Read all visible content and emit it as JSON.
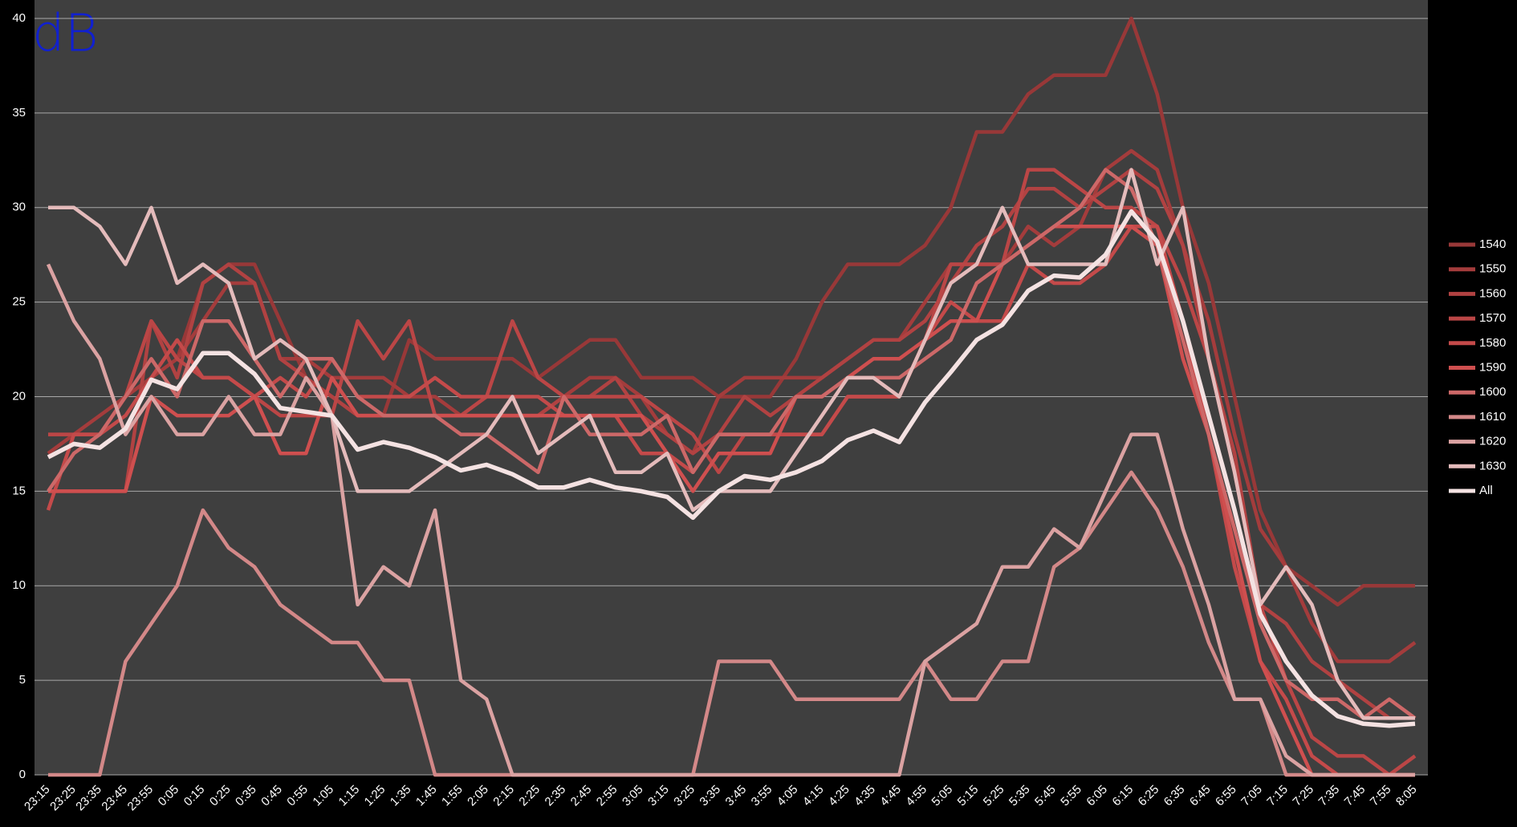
{
  "chart_data": {
    "type": "line",
    "annotation": "dB",
    "categories": [
      "23:15",
      "23:25",
      "23:35",
      "23:45",
      "23:55",
      "0:05",
      "0:15",
      "0:25",
      "0:35",
      "0:45",
      "0:55",
      "1:05",
      "1:15",
      "1:25",
      "1:35",
      "1:45",
      "1:55",
      "2:05",
      "2:15",
      "2:25",
      "2:35",
      "2:45",
      "2:55",
      "3:05",
      "3:15",
      "3:25",
      "3:35",
      "3:45",
      "3:55",
      "4:05",
      "4:15",
      "4:25",
      "4:35",
      "4:45",
      "4:55",
      "5:05",
      "5:15",
      "5:25",
      "5:35",
      "5:45",
      "5:55",
      "6:05",
      "6:15",
      "6:25",
      "6:35",
      "6:45",
      "6:55",
      "7:05",
      "7:15",
      "7:25",
      "7:35",
      "7:45",
      "7:55",
      "8:05"
    ],
    "ylim": [
      0,
      40
    ],
    "yticks": [
      0,
      5,
      10,
      15,
      20,
      25,
      30,
      35,
      40
    ],
    "grid": true,
    "legend": "right",
    "series": [
      {
        "name": "1540",
        "color": "#983838",
        "values": [
          18,
          18,
          18,
          20,
          24,
          22,
          26,
          27,
          27,
          24,
          21,
          20,
          19,
          19,
          23,
          22,
          22,
          22,
          22,
          21,
          22,
          23,
          23,
          21,
          21,
          21,
          20,
          20,
          20,
          22,
          25,
          27,
          27,
          27,
          28,
          30,
          34,
          34,
          36,
          37,
          37,
          37,
          40,
          36,
          30,
          26,
          20,
          14,
          11,
          10,
          9,
          10,
          10,
          10
        ]
      },
      {
        "name": "1550",
        "color": "#a43c3c",
        "values": [
          17,
          18,
          19,
          20,
          21,
          22,
          24,
          26,
          26,
          22,
          22,
          21,
          21,
          21,
          20,
          20,
          19,
          19,
          19,
          19,
          20,
          21,
          21,
          20,
          18,
          17,
          20,
          21,
          21,
          21,
          21,
          22,
          23,
          23,
          25,
          27,
          27,
          27,
          29,
          28,
          29,
          32,
          33,
          32,
          28,
          24,
          18,
          13,
          11,
          8,
          6,
          6,
          6,
          7
        ]
      },
      {
        "name": "1560",
        "color": "#b14242",
        "values": [
          15,
          15,
          15,
          15,
          24,
          21,
          26,
          27,
          26,
          22,
          21,
          20,
          19,
          19,
          19,
          19,
          19,
          19,
          19,
          19,
          20,
          20,
          21,
          19,
          18,
          17,
          18,
          20,
          19,
          20,
          21,
          22,
          23,
          23,
          24,
          26,
          28,
          29,
          31,
          31,
          30,
          31,
          32,
          31,
          28,
          22,
          17,
          9,
          8,
          6,
          5,
          4,
          3,
          3
        ]
      },
      {
        "name": "1570",
        "color": "#bb4646",
        "values": [
          18,
          18,
          18,
          20,
          24,
          22,
          21,
          21,
          20,
          19,
          19,
          19,
          24,
          22,
          24,
          19,
          19,
          20,
          24,
          21,
          20,
          20,
          20,
          20,
          19,
          18,
          16,
          18,
          18,
          18,
          18,
          20,
          20,
          20,
          23,
          27,
          27,
          27,
          32,
          32,
          31,
          30,
          30,
          29,
          26,
          22,
          16,
          9,
          5,
          2,
          1,
          1,
          0,
          1
        ]
      },
      {
        "name": "1580",
        "color": "#c44a4a",
        "values": [
          14,
          18,
          18,
          19,
          21,
          23,
          21,
          21,
          20,
          21,
          20,
          22,
          20,
          20,
          20,
          21,
          20,
          20,
          20,
          20,
          19,
          19,
          19,
          17,
          17,
          16,
          18,
          18,
          18,
          18,
          18,
          20,
          20,
          20,
          23,
          25,
          24,
          24,
          27,
          26,
          26,
          27,
          29,
          29,
          24,
          18,
          11,
          6,
          4,
          1,
          0,
          0,
          0,
          0
        ]
      },
      {
        "name": "1590",
        "color": "#cf4f4f",
        "values": [
          15,
          15,
          15,
          15,
          20,
          19,
          19,
          19,
          20,
          17,
          17,
          21,
          19,
          19,
          19,
          19,
          19,
          19,
          19,
          19,
          19,
          19,
          19,
          19,
          17,
          15,
          17,
          17,
          17,
          20,
          20,
          21,
          22,
          22,
          23,
          24,
          24,
          27,
          28,
          29,
          29,
          29,
          29,
          28,
          22,
          18,
          12,
          6,
          3,
          0,
          0,
          0,
          0,
          0
        ]
      },
      {
        "name": "1600",
        "color": "#cd6868",
        "values": [
          15,
          17,
          18,
          20,
          22,
          20,
          24,
          24,
          22,
          20,
          22,
          22,
          20,
          19,
          19,
          19,
          18,
          18,
          17,
          16,
          20,
          18,
          18,
          18,
          19,
          16,
          18,
          18,
          18,
          20,
          20,
          21,
          21,
          21,
          22,
          23,
          26,
          27,
          28,
          29,
          30,
          32,
          31,
          28,
          23,
          18,
          13,
          8,
          5,
          4,
          4,
          3,
          4,
          3
        ]
      },
      {
        "name": "1610",
        "color": "#d38888",
        "values": [
          0,
          0,
          0,
          6,
          8,
          10,
          14,
          12,
          11,
          9,
          8,
          7,
          7,
          5,
          5,
          0,
          0,
          0,
          0,
          0,
          0,
          0,
          0,
          0,
          0,
          0,
          6,
          6,
          6,
          4,
          4,
          4,
          4,
          4,
          6,
          4,
          4,
          6,
          6,
          11,
          12,
          14,
          16,
          14,
          11,
          7,
          4,
          4,
          0,
          0,
          0,
          0,
          0,
          0
        ]
      },
      {
        "name": "1620",
        "color": "#dba2a2",
        "values": [
          27,
          24,
          22,
          18,
          20,
          18,
          18,
          20,
          18,
          18,
          21,
          19,
          9,
          11,
          10,
          14,
          5,
          4,
          0,
          0,
          0,
          0,
          0,
          0,
          0,
          0,
          0,
          0,
          0,
          0,
          0,
          0,
          0,
          0,
          6,
          7,
          8,
          11,
          11,
          13,
          12,
          15,
          18,
          18,
          13,
          9,
          4,
          4,
          1,
          0,
          0,
          0,
          0,
          0
        ]
      },
      {
        "name": "1630",
        "color": "#e4bbbb",
        "values": [
          30,
          30,
          29,
          27,
          30,
          26,
          27,
          26,
          22,
          23,
          22,
          19,
          15,
          15,
          15,
          16,
          17,
          18,
          20,
          17,
          18,
          19,
          16,
          16,
          17,
          14,
          15,
          15,
          15,
          17,
          19,
          21,
          21,
          20,
          23,
          26,
          27,
          30,
          27,
          27,
          27,
          27,
          32,
          27,
          30,
          22,
          16,
          9,
          11,
          9,
          5,
          3,
          3,
          3
        ]
      },
      {
        "name": "All",
        "color": "#f4e2e2",
        "values": [
          16.8,
          17.5,
          17.3,
          18.3,
          20.9,
          20.4,
          22.3,
          22.3,
          21.2,
          19.4,
          19.2,
          19,
          17.2,
          17.6,
          17.3,
          16.8,
          16.1,
          16.4,
          15.9,
          15.2,
          15.2,
          15.6,
          15.2,
          15,
          14.7,
          13.6,
          15,
          15.8,
          15.6,
          16,
          16.6,
          17.7,
          18.2,
          17.6,
          19.7,
          21.3,
          23,
          23.8,
          25.6,
          26.4,
          26.3,
          27.5,
          29.8,
          28.2,
          24,
          19,
          14,
          8.5,
          6,
          4.2,
          3.1,
          2.7,
          2.6,
          2.7
        ]
      }
    ]
  }
}
